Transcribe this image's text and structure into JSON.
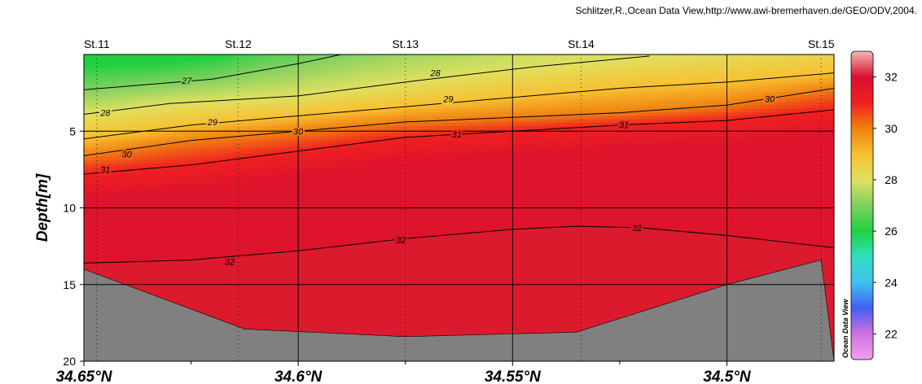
{
  "credit": "Schlitzer,R.,Ocean Data View,http://www.awi-bremerhaven.de/GEO/ODV,2004.",
  "chart_data": {
    "type": "heatmap",
    "title": "",
    "xlabel": "",
    "ylabel": "Depth[m]",
    "x_axis": {
      "range": [
        34.65,
        34.475
      ],
      "ticks": [
        34.65,
        34.6,
        34.55,
        34.5
      ],
      "tick_labels": [
        "34.65°N",
        "34.6°N",
        "34.55°N",
        "34.5°N"
      ],
      "minor_ticks": [
        34.625,
        34.575,
        34.525
      ]
    },
    "y_axis": {
      "range": [
        0,
        20
      ],
      "inverted": true,
      "ticks": [
        5,
        10,
        15,
        20
      ],
      "tick_labels": [
        "5",
        "10",
        "15",
        "20"
      ]
    },
    "grid": true,
    "stations": [
      {
        "name": "St.11",
        "lat": 34.647
      },
      {
        "name": "St.12",
        "lat": 34.614
      },
      {
        "name": "St.13",
        "lat": 34.575
      },
      {
        "name": "St.14",
        "lat": 34.534
      },
      {
        "name": "St.15",
        "lat": 34.478
      }
    ],
    "bottom_depth": [
      {
        "lat": 34.65,
        "depth": 14.0
      },
      {
        "lat": 34.6125,
        "depth": 17.9
      },
      {
        "lat": 34.575,
        "depth": 18.4
      },
      {
        "lat": 34.535,
        "depth": 18.1
      },
      {
        "lat": 34.5,
        "depth": 15.0
      },
      {
        "lat": 34.478,
        "depth": 13.4
      }
    ],
    "contours": [
      {
        "level": 27,
        "points": [
          [
            34.65,
            2.3
          ],
          [
            34.62,
            1.6
          ],
          [
            34.6,
            0.6
          ],
          [
            34.59,
            0.0
          ]
        ],
        "labels": [
          {
            "lat": 34.626,
            "depth": 1.7
          }
        ]
      },
      {
        "level": 28,
        "points": [
          [
            34.65,
            3.9
          ],
          [
            34.63,
            3.2
          ],
          [
            34.6,
            2.7
          ],
          [
            34.575,
            1.8
          ],
          [
            34.545,
            0.8
          ],
          [
            34.518,
            0.1
          ]
        ],
        "labels": [
          {
            "lat": 34.645,
            "depth": 3.8
          },
          {
            "lat": 34.568,
            "depth": 1.2
          }
        ]
      },
      {
        "level": 29,
        "points": [
          [
            34.65,
            5.5
          ],
          [
            34.625,
            4.6
          ],
          [
            34.6,
            4.0
          ],
          [
            34.575,
            3.4
          ],
          [
            34.55,
            2.8
          ],
          [
            34.525,
            2.2
          ],
          [
            34.5,
            1.8
          ],
          [
            34.475,
            1.2
          ]
        ],
        "labels": [
          {
            "lat": 34.62,
            "depth": 4.4
          },
          {
            "lat": 34.565,
            "depth": 2.9
          }
        ]
      },
      {
        "level": 30,
        "points": [
          [
            34.65,
            6.6
          ],
          [
            34.625,
            5.6
          ],
          [
            34.6,
            5.0
          ],
          [
            34.575,
            4.4
          ],
          [
            34.55,
            4.1
          ],
          [
            34.525,
            3.8
          ],
          [
            34.5,
            3.3
          ],
          [
            34.475,
            2.2
          ]
        ],
        "labels": [
          {
            "lat": 34.64,
            "depth": 6.5
          },
          {
            "lat": 34.6,
            "depth": 5.0
          },
          {
            "lat": 34.49,
            "depth": 2.9
          }
        ]
      },
      {
        "level": 31,
        "points": [
          [
            34.65,
            7.8
          ],
          [
            34.625,
            7.2
          ],
          [
            34.6,
            6.3
          ],
          [
            34.575,
            5.4
          ],
          [
            34.55,
            5.0
          ],
          [
            34.525,
            4.6
          ],
          [
            34.5,
            4.3
          ],
          [
            34.475,
            3.6
          ]
        ],
        "labels": [
          {
            "lat": 34.645,
            "depth": 7.5
          },
          {
            "lat": 34.563,
            "depth": 5.2
          },
          {
            "lat": 34.524,
            "depth": 4.6
          }
        ]
      },
      {
        "level": 32,
        "points": [
          [
            34.65,
            13.6
          ],
          [
            34.625,
            13.4
          ],
          [
            34.6,
            12.8
          ],
          [
            34.575,
            12.0
          ],
          [
            34.55,
            11.4
          ],
          [
            34.535,
            11.2
          ],
          [
            34.52,
            11.3
          ],
          [
            34.5,
            11.8
          ],
          [
            34.475,
            12.6
          ]
        ],
        "labels": [
          {
            "lat": 34.616,
            "depth": 13.5
          },
          {
            "lat": 34.576,
            "depth": 12.1
          },
          {
            "lat": 34.521,
            "depth": 11.3
          }
        ]
      }
    ],
    "colorbar": {
      "range": [
        21,
        33
      ],
      "ticks": [
        22,
        24,
        26,
        28,
        30,
        32
      ],
      "tick_labels": [
        "22",
        "24",
        "26",
        "28",
        "30",
        "32"
      ],
      "label": "Ocean Data View",
      "stops": [
        {
          "value": 21,
          "color": "#f0a0f0"
        },
        {
          "value": 22,
          "color": "#d070e0"
        },
        {
          "value": 23,
          "color": "#4060f0"
        },
        {
          "value": 24,
          "color": "#40c0f0"
        },
        {
          "value": 25,
          "color": "#30e0c0"
        },
        {
          "value": 26,
          "color": "#20d040"
        },
        {
          "value": 27,
          "color": "#80d060"
        },
        {
          "value": 28,
          "color": "#e0e060"
        },
        {
          "value": 29,
          "color": "#f8c030"
        },
        {
          "value": 30,
          "color": "#f08010"
        },
        {
          "value": 31,
          "color": "#f02020"
        },
        {
          "value": 32,
          "color": "#d81030"
        },
        {
          "value": 33,
          "color": "#f4b8b8"
        }
      ]
    },
    "colors": {
      "bottom": "#808080",
      "deep_water": "#d82030"
    }
  }
}
